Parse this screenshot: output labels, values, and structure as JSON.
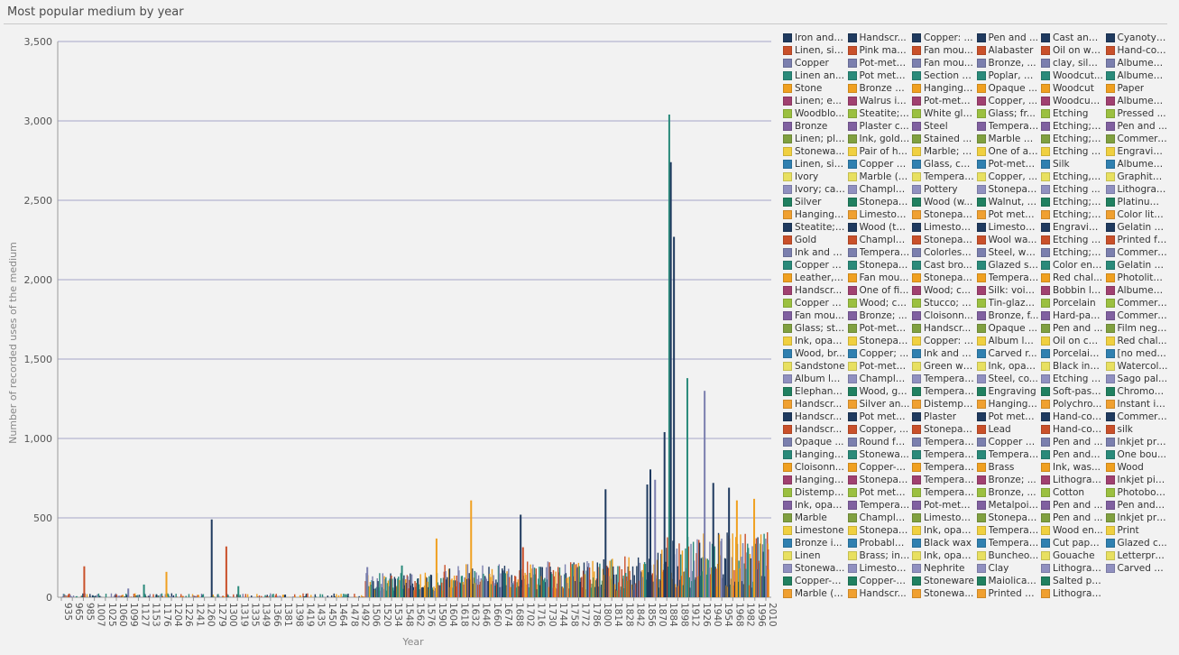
{
  "page": {
    "title": "Most popular medium by year"
  },
  "colors": [
    "#1f3a5f",
    "#c9502a",
    "#7b7fae",
    "#2a8a7a",
    "#f0a020",
    "#a04070",
    "#9bc040",
    "#8060a0",
    "#80a040",
    "#f0d040",
    "#3080b0",
    "#e8e060",
    "#9090c0",
    "#208060",
    "#f0a030"
  ],
  "chart_data": {
    "type": "bar",
    "title": "Most popular medium by year",
    "xlabel": "Year",
    "ylabel": "Number of recorded uses of the medium",
    "ylim": [
      0,
      3500
    ],
    "yticks": [
      "0",
      "500",
      "1,000",
      "1,500",
      "2,000",
      "2,500",
      "3,000",
      "3,500"
    ],
    "xticks": [
      "935",
      "965",
      "985",
      "1007",
      "1025",
      "1060",
      "1099",
      "1127",
      "1153",
      "1176",
      "1204",
      "1226",
      "1241",
      "1260",
      "1279",
      "1300",
      "1319",
      "1335",
      "1349",
      "1366",
      "1381",
      "1398",
      "1419",
      "1435",
      "1450",
      "1464",
      "1478",
      "1492",
      "1506",
      "1520",
      "1534",
      "1548",
      "1562",
      "1576",
      "1590",
      "1604",
      "1618",
      "1632",
      "1646",
      "1660",
      "1674",
      "1688",
      "1702",
      "1716",
      "1730",
      "1744",
      "1758",
      "1772",
      "1786",
      "1800",
      "1814",
      "1828",
      "1842",
      "1856",
      "1870",
      "1884",
      "1898",
      "1912",
      "1926",
      "1940",
      "1954",
      "1968",
      "1982",
      "1996",
      "2010"
    ],
    "grid": true,
    "legend_position": "right",
    "peaks": [
      {
        "x": 985,
        "value": 195,
        "color": 1
      },
      {
        "x": 1099,
        "value": 55,
        "color": 2
      },
      {
        "x": 1138,
        "value": 80,
        "color": 3
      },
      {
        "x": 1189,
        "value": 160,
        "color": 4
      },
      {
        "x": 1271,
        "value": 490,
        "color": 0
      },
      {
        "x": 1298,
        "value": 320,
        "color": 1
      },
      {
        "x": 1319,
        "value": 70,
        "color": 3
      },
      {
        "x": 1502,
        "value": 190,
        "color": 2
      },
      {
        "x": 1546,
        "value": 200,
        "color": 3
      },
      {
        "x": 1590,
        "value": 370,
        "color": 4
      },
      {
        "x": 1634,
        "value": 610,
        "color": 4
      },
      {
        "x": 1697,
        "value": 520,
        "color": 0
      },
      {
        "x": 1700,
        "value": 315,
        "color": 1
      },
      {
        "x": 1805,
        "value": 680,
        "color": 0
      },
      {
        "x": 1858,
        "value": 710,
        "color": 0
      },
      {
        "x": 1862,
        "value": 805,
        "color": 0
      },
      {
        "x": 1868,
        "value": 740,
        "color": 2
      },
      {
        "x": 1880,
        "value": 1040,
        "color": 0
      },
      {
        "x": 1886,
        "value": 3040,
        "color": 3
      },
      {
        "x": 1888,
        "value": 2740,
        "color": 0
      },
      {
        "x": 1892,
        "value": 2270,
        "color": 0
      },
      {
        "x": 1909,
        "value": 1380,
        "color": 3
      },
      {
        "x": 1931,
        "value": 1300,
        "color": 2
      },
      {
        "x": 1942,
        "value": 720,
        "color": 0
      },
      {
        "x": 1962,
        "value": 690,
        "color": 0
      },
      {
        "x": 1972,
        "value": 610,
        "color": 4
      },
      {
        "x": 1994,
        "value": 620,
        "color": 4
      }
    ]
  },
  "legend": [
    "Iron and ...",
    "Linen, sil...",
    "Copper",
    "Linen an...",
    "Stone",
    "Linen; e...",
    "Woodblo...",
    "Bronze",
    "Linen; pla...",
    "Stonewa...",
    "Linen, sil...",
    "Ivory",
    "Ivory; car...",
    "Silver",
    "Hanging ...",
    "Steatite; ...",
    "Gold",
    "Ink and g...",
    "Copper al...",
    "Leather, l...",
    "Handscr...",
    "Copper al...",
    "Fan mou...",
    "Glass; st...",
    "Ink, opaq...",
    "Wood, br...",
    "Sandstone",
    "Album le...",
    "Elephant i...",
    "Handscr...",
    "Handscr...",
    "Handscr...",
    "Opaque ...",
    "Hanging ...",
    "Cloisonn...",
    "Hanging ...",
    "Distempe...",
    "Ink, opaq...",
    "Marble",
    "Limestone",
    "Bronze i...",
    "Linen",
    "Stonewa...",
    "Copper-g...",
    "Marble (P...",
    "Handscr...",
    "Pink marble",
    "Pot-metal...",
    "Pot metal ...",
    "Bronze a...",
    "Walrus iv...",
    "Steatite; ...",
    "Plaster c...",
    "Ink, gold, ...",
    "Pair of ha...",
    "Copper a...",
    "Marble (C...",
    "Chample...",
    "Stonepas...",
    "Limeston...",
    "Wood (te...",
    "Chample...",
    "Tempera,...",
    "Stonepas...",
    "Fan mou...",
    "One of fi...",
    "Wood; ca...",
    "Bronze; ...",
    "Pot-metal...",
    "Stonepas...",
    "Copper; ...",
    "Pot-metal...",
    "Chample...",
    "Wood, gil...",
    "Silver an...",
    "Pot metal ...",
    "Copper, ...",
    "Round fa...",
    "Stonewa...",
    "Copper-g...",
    "Stonepas...",
    "Pot metal ...",
    "Tempera ...",
    "Chample...",
    "Stonepas...",
    "Probably ...",
    "Brass; inl...",
    "Limeston...",
    "Copper-g...",
    "Handscr...",
    "Copper: ...",
    "Fan mou...",
    "Fan mou...",
    "Section o...",
    "Hanging ...",
    "Pot-metal...",
    "White gla...",
    "Steel",
    "Stained ...",
    "Marble; c...",
    "Glass, ce...",
    "Tempera ...",
    "Pottery",
    "Wood (w...",
    "Stonepas...",
    "Limeston...",
    "Stonepas...",
    "Colorless...",
    "Cast bro...",
    "Stonepas...",
    "Wood; c...",
    "Stucco; c...",
    "Cloisonn...",
    "Handscr...",
    "Copper: f...",
    "Ink and pi...",
    "Green wax",
    "Tempera ...",
    "Tempera ...",
    "Distempe...",
    "Plaster",
    "Stonepas...",
    "Tempera ...",
    "Tempera ...",
    "Tempera ...",
    "Tempera ...",
    "Tempera ...",
    "Pot-metal...",
    "Limeston...",
    "Ink, opaq...",
    "Black wax",
    "Ink, opaq...",
    "Nephrite",
    "Stoneware",
    "Stonewa...",
    "Pen and ...",
    "Alabaster",
    "Bronze, ...",
    "Poplar, p...",
    "Opaque ...",
    "Copper, ...",
    "Glass; fr...",
    "Tempera ...",
    "Marble w...",
    "One of a ...",
    "Pot-metal...",
    "Copper, ...",
    "Stonepas...",
    "Walnut, ir...",
    "Pot metal ...",
    "Limeston...",
    "Wool wa...",
    "Steel, wo...",
    "Glazed st...",
    "Tempera ...",
    "Silk: void...",
    "Tin-glaze...",
    "Bronze, f...",
    "Opaque ...",
    "Album le...",
    "Carved r...",
    "Ink, opaq...",
    "Steel, co...",
    "Engraving",
    "Hanging ...",
    "Pot metal,...",
    "Lead",
    "Copper al...",
    "Tempera,...",
    "Brass",
    "Bronze; ...",
    "Bronze, ...",
    "Metalpoin...",
    "Stonepas...",
    "Tempera ...",
    "Tempera ...",
    "Buncheo...",
    "Clay",
    "Maiolica (...",
    "Printed b...",
    "Cast and ...",
    "Oil on wo...",
    "clay, silver",
    "Woodcut...",
    "Woodcut",
    "Woodcut;...",
    "Etching",
    "Etching; f...",
    "Etching; f...",
    "Etching a...",
    "Silk",
    "Etching, f...",
    "Etching ...",
    "Etching; ...",
    "Etching; ...",
    "Engravin...",
    "Etching a...",
    "Etching; ...",
    "Color eng...",
    "Red chal...",
    "Bobbin la...",
    "Porcelain",
    "Hard-pas...",
    "Pen and ...",
    "Oil on ca...",
    "Porcelain...",
    "Black ink,...",
    "Etching a...",
    "Soft-past...",
    "Polychro...",
    "Hand-col...",
    "Hand-col...",
    "Pen and ...",
    "Pen and i...",
    "Ink, was...",
    "Lithograph",
    "Cotton",
    "Pen and ...",
    "Pen and ...",
    "Wood en...",
    "Cut pape...",
    "Gouache",
    "Lithograp...",
    "Salted pa...",
    "Lithograp...",
    "Cyanotype",
    "Hand-col...",
    "Albumen ...",
    "Albumen ...",
    "Paper",
    "Albumen ...",
    "Pressed ...",
    "Pen and ...",
    "Commerc...",
    "Engravin...",
    "Albumen ...",
    "Graphite ...",
    "Lithograp...",
    "Platinum ...",
    "Color lith...",
    "Gelatin sil...",
    "Printed felt",
    "Commerc...",
    "Gelatin sil...",
    "Photolitho...",
    "Albumen ...",
    "Commerc...",
    "Commerc...",
    "Film nega...",
    "Red chal...",
    "[no medi...",
    "Watercol...",
    "Sago pal...",
    "Chromog...",
    "Instant int...",
    "Commerc...",
    "silk",
    "Inkjet print",
    "One bou...",
    "Wood",
    "Inkjet pig...",
    "Photoboo...",
    "Pen and i...",
    "Inkjet prin...",
    "Print",
    "Glazed c...",
    "Letterpre...",
    "Carved gl..."
  ]
}
